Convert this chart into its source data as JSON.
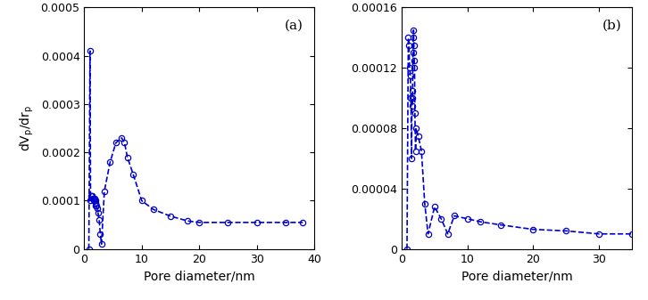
{
  "plot_a": {
    "x": [
      0.8,
      1.0,
      1.1,
      1.2,
      1.3,
      1.4,
      1.5,
      1.6,
      1.65,
      1.7,
      1.75,
      1.8,
      1.85,
      1.9,
      1.95,
      2.0,
      2.1,
      2.2,
      2.4,
      2.6,
      2.8,
      3.0,
      3.5,
      4.5,
      5.5,
      6.5,
      7.0,
      7.5,
      8.5,
      10.0,
      12.0,
      15.0,
      18.0,
      20.0,
      25.0,
      30.0,
      35.0,
      38.0
    ],
    "y": [
      0.0,
      0.00041,
      0.0001,
      0.00011,
      0.00011,
      0.00011,
      0.000105,
      0.000105,
      0.000105,
      0.0001,
      0.000105,
      0.0001,
      0.0001,
      0.0001,
      9.5e-05,
      9e-05,
      9e-05,
      8.5e-05,
      7.5e-05,
      6e-05,
      3e-05,
      1e-05,
      0.00012,
      0.00018,
      0.00022,
      0.00023,
      0.00022,
      0.00019,
      0.000155,
      0.0001,
      8.2e-05,
      6.8e-05,
      5.8e-05,
      5.5e-05,
      5.5e-05,
      5.5e-05,
      5.5e-05,
      5.5e-05
    ],
    "label": "(a)",
    "xlim": [
      0,
      40
    ],
    "ylim": [
      0,
      0.0005
    ],
    "yticks": [
      0,
      0.0001,
      0.0002,
      0.0003,
      0.0004,
      0.0005
    ],
    "xticks": [
      0,
      10,
      20,
      30,
      40
    ]
  },
  "plot_b": {
    "x": [
      0.8,
      1.0,
      1.1,
      1.2,
      1.3,
      1.4,
      1.5,
      1.55,
      1.6,
      1.65,
      1.7,
      1.75,
      1.8,
      1.85,
      1.9,
      1.95,
      2.0,
      2.1,
      2.2,
      2.5,
      3.0,
      3.5,
      4.0,
      5.0,
      6.0,
      7.0,
      8.0,
      10.0,
      12.0,
      15.0,
      20.0,
      25.0,
      30.0,
      35.0
    ],
    "y": [
      0.0,
      0.00014,
      0.000135,
      0.00012,
      0.000115,
      0.0001,
      6e-05,
      0.0001,
      9.5e-05,
      0.000105,
      0.00013,
      0.00014,
      0.000145,
      0.000135,
      0.000125,
      0.00012,
      9e-05,
      6.5e-05,
      8e-05,
      7.5e-05,
      6.5e-05,
      3e-05,
      1e-05,
      2.8e-05,
      2e-05,
      1e-05,
      2.2e-05,
      2e-05,
      1.8e-05,
      1.6e-05,
      1.3e-05,
      1.2e-05,
      1e-05,
      1e-05
    ],
    "label": "(b)",
    "xlim": [
      0,
      35
    ],
    "ylim": [
      0,
      0.00016
    ],
    "yticks": [
      0,
      4e-05,
      8e-05,
      0.00012,
      0.00016
    ],
    "xticks": [
      0,
      10,
      20,
      30
    ]
  },
  "xlabel": "Pore diameter/nm",
  "line_color": "#0000cc",
  "markersize": 4.5,
  "linewidth": 1.2
}
